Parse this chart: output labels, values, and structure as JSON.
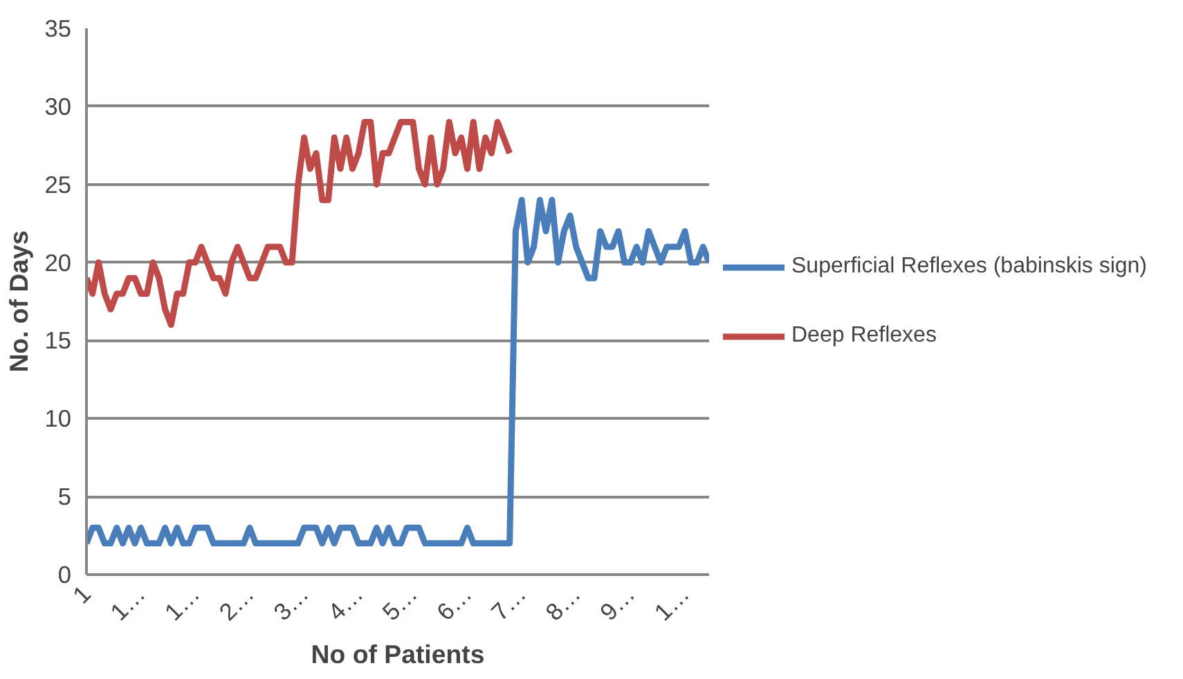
{
  "chart_data": {
    "type": "line",
    "xlabel": "No of Patients",
    "ylabel": "No. of Days",
    "categories": [
      "1",
      null,
      null,
      null,
      null,
      null,
      null,
      null,
      null,
      "1…",
      null,
      null,
      null,
      null,
      null,
      null,
      null,
      null,
      "1…",
      null,
      null,
      null,
      null,
      null,
      null,
      null,
      null,
      "2…",
      null,
      null,
      null,
      null,
      null,
      null,
      null,
      null,
      "3…",
      null,
      null,
      null,
      null,
      null,
      null,
      null,
      null,
      "4…",
      null,
      null,
      null,
      null,
      null,
      null,
      null,
      null,
      "5…",
      null,
      null,
      null,
      null,
      null,
      null,
      null,
      null,
      "6…",
      null,
      null,
      null,
      null,
      null,
      null,
      null,
      null,
      "7…",
      null,
      null,
      null,
      null,
      null,
      null,
      null,
      null,
      "8…",
      null,
      null,
      null,
      null,
      null,
      null,
      null,
      null,
      "9…",
      null,
      null,
      null,
      null,
      null,
      null,
      null,
      null,
      "1…",
      null,
      null,
      null,
      null
    ],
    "series": [
      {
        "name": "Superficial Reflexes (babinskis sign)",
        "color": "#4a7ebb",
        "values": [
          2,
          3,
          3,
          2,
          2,
          3,
          2,
          3,
          2,
          3,
          2,
          2,
          2,
          3,
          2,
          3,
          2,
          2,
          3,
          3,
          3,
          2,
          2,
          2,
          2,
          2,
          2,
          3,
          2,
          2,
          2,
          2,
          2,
          2,
          2,
          2,
          3,
          3,
          3,
          2,
          3,
          2,
          3,
          3,
          3,
          2,
          2,
          2,
          3,
          2,
          3,
          2,
          2,
          3,
          3,
          3,
          2,
          2,
          2,
          2,
          2,
          2,
          2,
          3,
          2,
          2,
          2,
          2,
          2,
          2,
          2,
          22,
          24,
          20,
          21,
          24,
          22,
          24,
          20,
          22,
          23,
          21,
          20,
          19,
          19,
          22,
          21,
          21,
          22,
          20,
          20,
          21,
          20,
          22,
          21,
          20,
          21,
          21,
          21,
          22,
          20,
          20,
          21,
          20
        ]
      },
      {
        "name": "Deep Reflexes",
        "color": "#be4b48",
        "values": [
          19,
          18,
          20,
          18,
          17,
          18,
          18,
          19,
          19,
          18,
          18,
          20,
          19,
          17,
          16,
          18,
          18,
          20,
          20,
          21,
          20,
          19,
          19,
          18,
          20,
          21,
          20,
          19,
          19,
          20,
          21,
          21,
          21,
          20,
          20,
          25,
          28,
          26,
          27,
          24,
          24,
          28,
          26,
          28,
          26,
          27,
          29,
          29,
          25,
          27,
          27,
          28,
          29,
          29,
          29,
          26,
          25,
          28,
          25,
          26,
          29,
          27,
          28,
          26,
          29,
          26,
          28,
          27,
          29,
          28,
          27,
          null,
          null,
          null,
          null,
          null,
          null,
          null,
          null,
          null,
          null,
          null,
          null,
          null,
          null,
          null,
          null,
          null,
          null,
          null,
          null,
          null,
          null,
          null,
          null,
          null,
          null,
          null,
          null,
          null,
          null,
          null,
          null,
          null
        ]
      }
    ],
    "ylim": [
      0,
      35
    ],
    "yticks": [
      0,
      5,
      10,
      15,
      20,
      25,
      30,
      35
    ],
    "grid": "y",
    "legend": "right",
    "marker": "none",
    "line_style": "solid"
  }
}
